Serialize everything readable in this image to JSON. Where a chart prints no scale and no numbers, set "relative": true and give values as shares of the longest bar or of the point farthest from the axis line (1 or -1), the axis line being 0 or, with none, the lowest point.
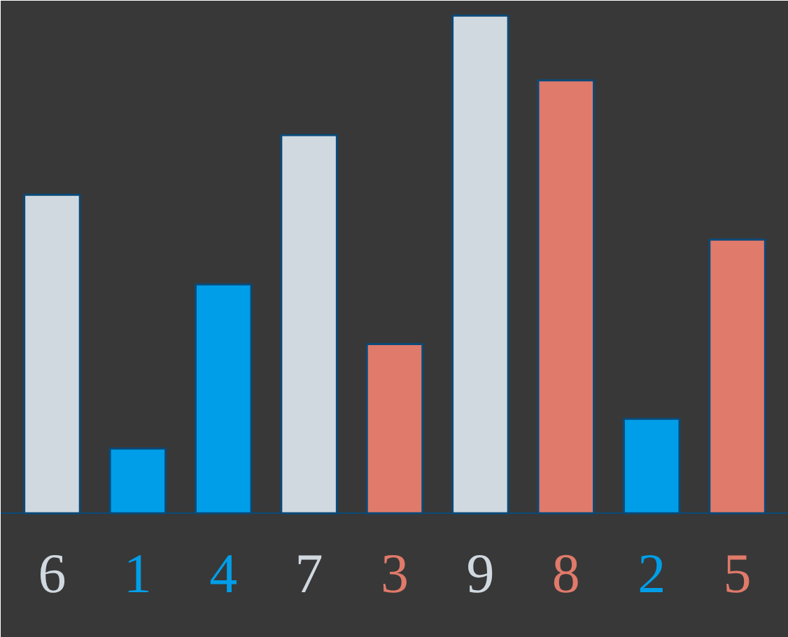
{
  "chart_data": {
    "type": "bar",
    "relative": true,
    "categories": [
      "6",
      "1",
      "4",
      "7",
      "3",
      "9",
      "8",
      "2",
      "5"
    ],
    "values": [
      0.64,
      0.13,
      0.46,
      0.76,
      0.34,
      1,
      0.87,
      0.19,
      0.55
    ],
    "colors": [
      "#d1d9e0",
      "#009ee8",
      "#009ee8",
      "#d1d9e0",
      "#e07a6a",
      "#d1d9e0",
      "#e07a6a",
      "#009ee8",
      "#e07a6a"
    ],
    "grid": false
  }
}
